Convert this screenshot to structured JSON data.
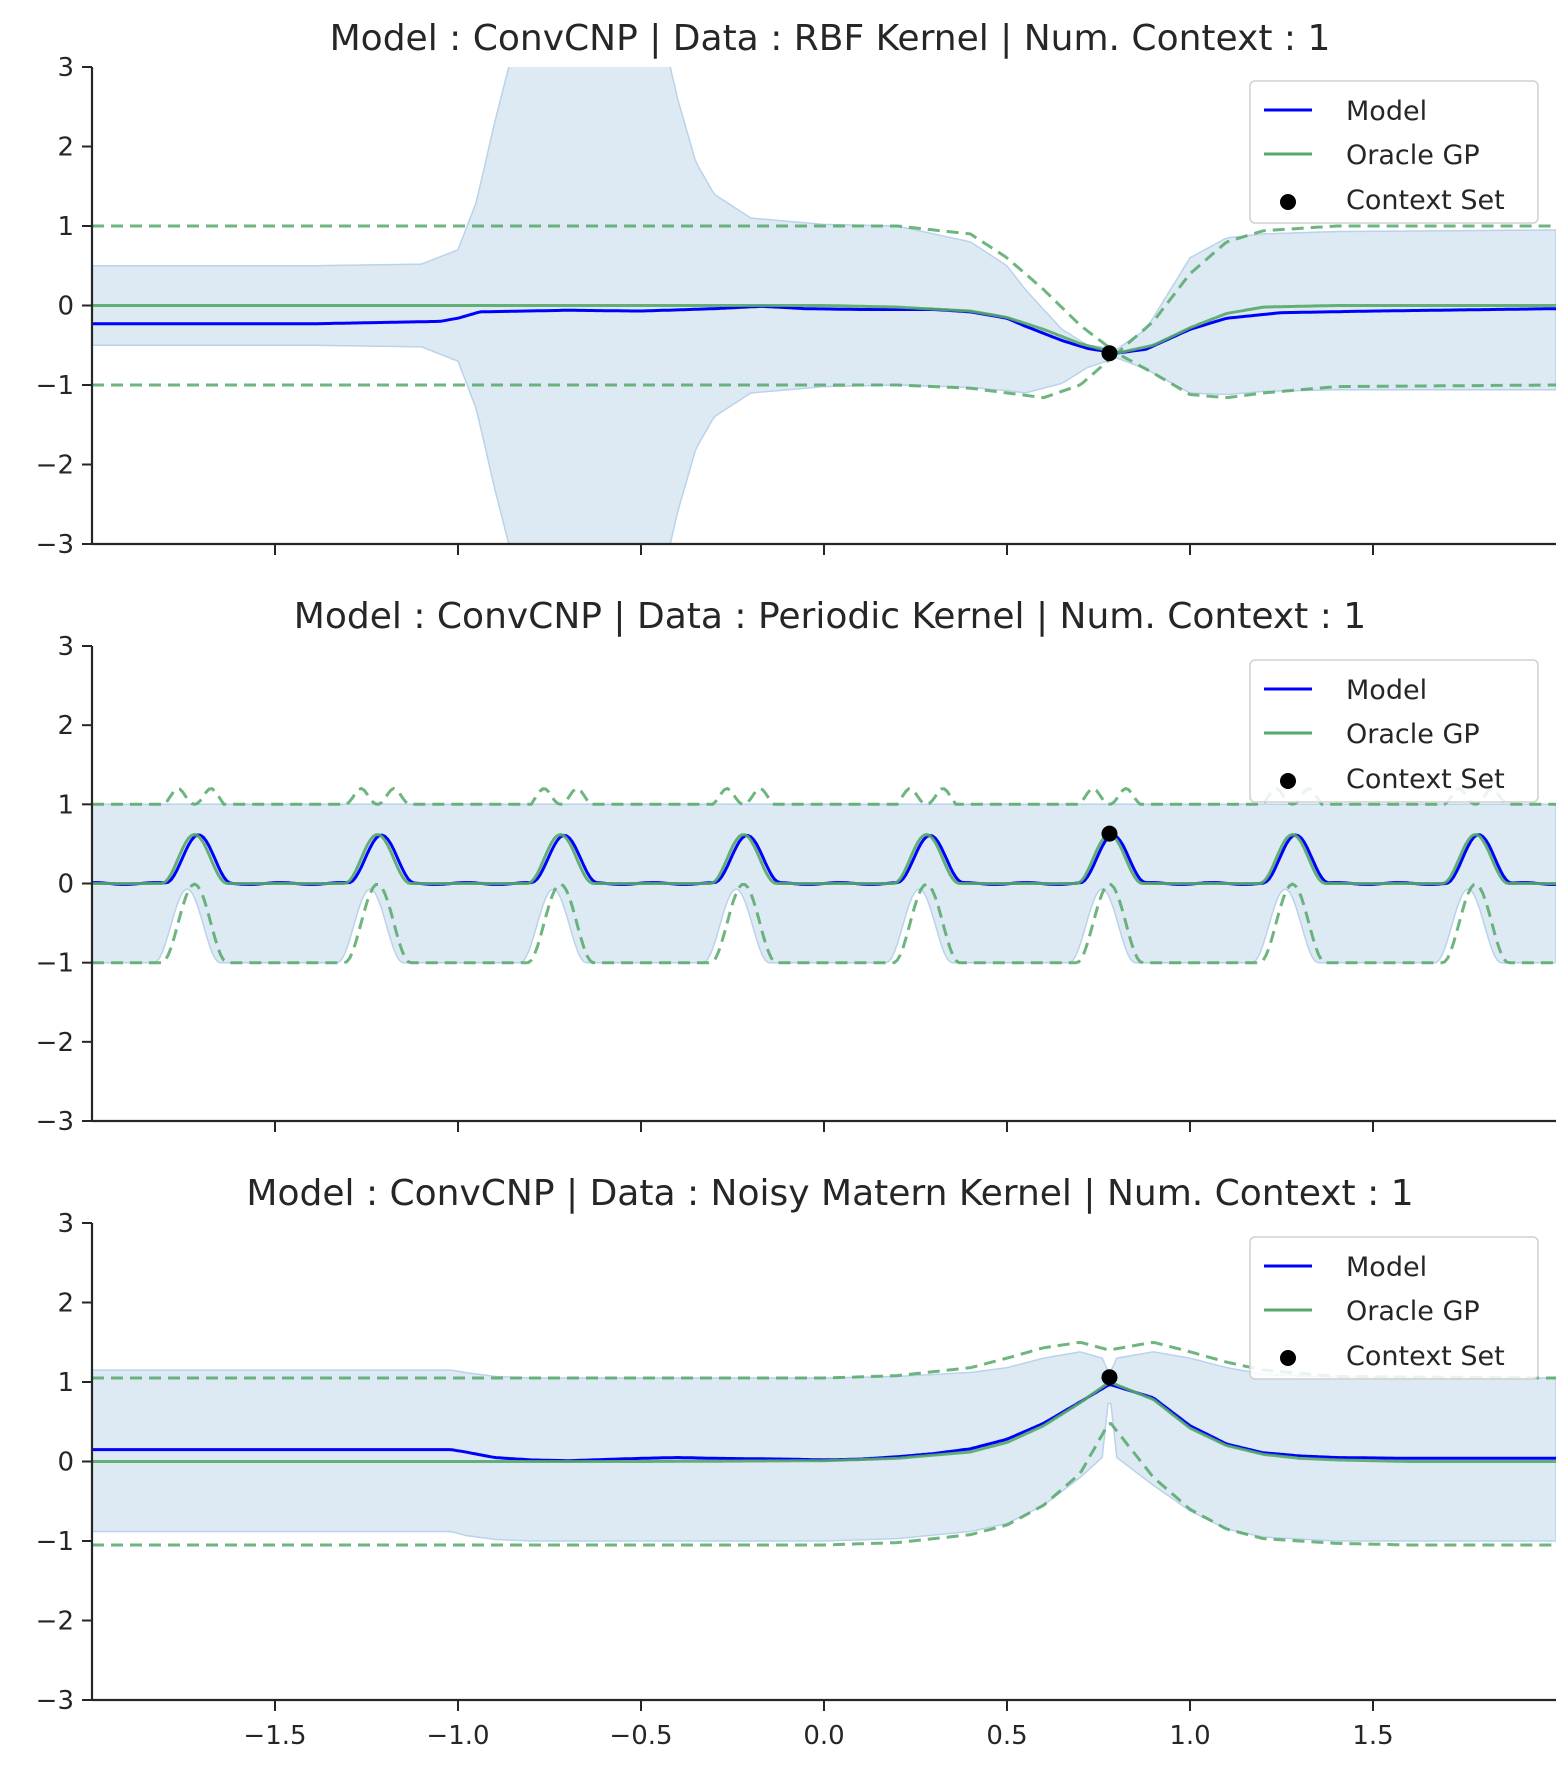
{
  "chart_data": [
    {
      "type": "line",
      "title": "Model : ConvCNP | Data : RBF Kernel | Num. Context : 1",
      "xlabel": "",
      "ylabel": "",
      "xlim": [
        -2.0,
        2.0
      ],
      "ylim": [
        -3,
        3
      ],
      "xticks": [
        -1.5,
        -1.0,
        -0.5,
        0.0,
        0.5,
        1.0,
        1.5
      ],
      "yticks": [
        3,
        2,
        1,
        0,
        -1,
        -2,
        -3
      ],
      "ytick_labels": [
        "3",
        "2",
        "1",
        "0",
        "−1",
        "−2",
        "−3"
      ],
      "show_x_tick_labels": false,
      "grid": false,
      "legend_position": "top-right",
      "legend": [
        "Model",
        "Oracle GP",
        "Context Set"
      ],
      "colors": {
        "model": "#0000ff",
        "oracle": "#55a868",
        "band": "#cfe1f0",
        "context": "#000000"
      },
      "model_mean": {
        "x": [
          -2.0,
          -1.4,
          -1.05,
          -1.0,
          -0.97,
          -0.94,
          -0.7,
          -0.5,
          -0.3,
          -0.17,
          -0.05,
          0.1,
          0.3,
          0.4,
          0.5,
          0.55,
          0.65,
          0.72,
          0.8,
          0.88,
          1.0,
          1.1,
          1.25,
          1.5,
          2.0
        ],
        "y": [
          -0.23,
          -0.23,
          -0.2,
          -0.16,
          -0.12,
          -0.08,
          -0.06,
          -0.07,
          -0.04,
          -0.01,
          -0.04,
          -0.05,
          -0.05,
          -0.08,
          -0.16,
          -0.26,
          -0.44,
          -0.54,
          -0.6,
          -0.55,
          -0.3,
          -0.16,
          -0.09,
          -0.07,
          -0.04
        ]
      },
      "model_band": {
        "x": [
          -2.0,
          -1.4,
          -1.1,
          -1.0,
          -0.95,
          -0.9,
          -0.85,
          -0.8,
          -0.75,
          -0.7,
          -0.65,
          -0.6,
          -0.55,
          -0.5,
          -0.45,
          -0.4,
          -0.35,
          -0.3,
          -0.2,
          0.0,
          0.2,
          0.4,
          0.5,
          0.55,
          0.65,
          0.72,
          0.8,
          0.88,
          1.0,
          1.1,
          1.2,
          1.4,
          2.0
        ],
        "upper": [
          0.5,
          0.5,
          0.52,
          0.7,
          1.3,
          2.3,
          3.2,
          4.2,
          5.0,
          5.5,
          5.6,
          5.4,
          5.0,
          4.5,
          3.6,
          2.6,
          1.8,
          1.4,
          1.1,
          1.02,
          1.0,
          0.8,
          0.5,
          0.2,
          -0.3,
          -0.5,
          -0.55,
          -0.3,
          0.6,
          0.85,
          0.9,
          0.93,
          0.95
        ],
        "lower": [
          -0.5,
          -0.5,
          -0.52,
          -0.7,
          -1.3,
          -2.3,
          -3.2,
          -4.2,
          -5.0,
          -5.5,
          -5.6,
          -5.4,
          -5.0,
          -4.5,
          -3.6,
          -2.6,
          -1.8,
          -1.4,
          -1.1,
          -1.02,
          -1.0,
          -1.03,
          -1.07,
          -1.1,
          -0.98,
          -0.78,
          -0.66,
          -0.8,
          -1.1,
          -1.12,
          -1.08,
          -1.06,
          -1.06
        ]
      },
      "oracle_mean": {
        "x": [
          -2.0,
          -0.2,
          0.0,
          0.2,
          0.4,
          0.5,
          0.6,
          0.7,
          0.8,
          0.9,
          1.0,
          1.1,
          1.2,
          1.4,
          2.0
        ],
        "y": [
          0.0,
          0.0,
          0.0,
          -0.02,
          -0.07,
          -0.15,
          -0.3,
          -0.48,
          -0.6,
          -0.5,
          -0.28,
          -0.1,
          -0.02,
          0.0,
          0.0
        ]
      },
      "oracle_upper": {
        "x": [
          -2.0,
          0.2,
          0.4,
          0.5,
          0.6,
          0.7,
          0.8,
          0.9,
          1.0,
          1.1,
          1.2,
          1.4,
          2.0
        ],
        "y": [
          1.0,
          1.0,
          0.9,
          0.6,
          0.2,
          -0.25,
          -0.6,
          -0.2,
          0.4,
          0.8,
          0.94,
          1.0,
          1.0
        ]
      },
      "oracle_lower": {
        "x": [
          -2.0,
          0.2,
          0.4,
          0.5,
          0.6,
          0.7,
          0.8,
          0.9,
          1.0,
          1.1,
          1.2,
          1.4,
          2.0
        ],
        "y": [
          -1.0,
          -1.0,
          -1.04,
          -1.1,
          -1.16,
          -1.0,
          -0.6,
          -0.85,
          -1.12,
          -1.16,
          -1.1,
          -1.02,
          -1.0
        ]
      },
      "context_points": {
        "x": [
          0.78
        ],
        "y": [
          -0.6
        ]
      }
    },
    {
      "type": "line",
      "title": "Model : ConvCNP | Data : Periodic Kernel | Num. Context : 1",
      "xlabel": "",
      "ylabel": "",
      "xlim": [
        -2.0,
        2.0
      ],
      "ylim": [
        -3,
        3
      ],
      "xticks": [
        -1.5,
        -1.0,
        -0.5,
        0.0,
        0.5,
        1.0,
        1.5
      ],
      "yticks": [
        3,
        2,
        1,
        0,
        -1,
        -2,
        -3
      ],
      "ytick_labels": [
        "3",
        "2",
        "1",
        "0",
        "−1",
        "−2",
        "−3"
      ],
      "show_x_tick_labels": false,
      "grid": false,
      "legend_position": "top-right",
      "legend": [
        "Model",
        "Oracle GP",
        "Context Set"
      ],
      "colors": {
        "model": "#0000ff",
        "oracle": "#55a868",
        "band": "#cfe1f0",
        "context": "#000000"
      },
      "periodic": {
        "period": 0.5,
        "first_peak": -1.72,
        "peak_height": 0.62,
        "peak_halfwidth": 0.09
      },
      "model_band": {
        "upper": 1.0,
        "lower": -1.0
      },
      "context_points": {
        "x": [
          0.78
        ],
        "y": [
          0.63
        ]
      }
    },
    {
      "type": "line",
      "title": "Model : ConvCNP | Data : Noisy Matern Kernel | Num. Context : 1",
      "xlabel": "",
      "ylabel": "",
      "xlim": [
        -2.0,
        2.0
      ],
      "ylim": [
        -3,
        3
      ],
      "xticks": [
        -1.5,
        -1.0,
        -0.5,
        0.0,
        0.5,
        1.0,
        1.5
      ],
      "xtick_labels": [
        "−1.5",
        "−1.0",
        "−0.5",
        "0.0",
        "0.5",
        "1.0",
        "1.5"
      ],
      "yticks": [
        3,
        2,
        1,
        0,
        -1,
        -2,
        -3
      ],
      "ytick_labels": [
        "3",
        "2",
        "1",
        "0",
        "−1",
        "−2",
        "−3"
      ],
      "show_x_tick_labels": true,
      "grid": false,
      "legend_position": "top-right",
      "legend": [
        "Model",
        "Oracle GP",
        "Context Set"
      ],
      "colors": {
        "model": "#0000ff",
        "oracle": "#55a868",
        "band": "#cfe1f0",
        "context": "#000000"
      },
      "model_mean": {
        "x": [
          -2.0,
          -1.02,
          -0.98,
          -0.9,
          -0.8,
          -0.7,
          -0.5,
          -0.4,
          -0.3,
          -0.1,
          0.0,
          0.1,
          0.2,
          0.3,
          0.4,
          0.5,
          0.6,
          0.7,
          0.78,
          0.9,
          1.0,
          1.1,
          1.2,
          1.3,
          1.4,
          1.6,
          2.0
        ],
        "y": [
          0.15,
          0.15,
          0.12,
          0.05,
          0.02,
          0.01,
          0.04,
          0.05,
          0.04,
          0.03,
          0.02,
          0.03,
          0.06,
          0.1,
          0.16,
          0.28,
          0.48,
          0.75,
          0.97,
          0.8,
          0.45,
          0.22,
          0.11,
          0.07,
          0.05,
          0.04,
          0.04
        ]
      },
      "model_band": {
        "x": [
          -2.0,
          -1.02,
          -0.98,
          -0.9,
          -0.8,
          -0.5,
          0.0,
          0.2,
          0.4,
          0.5,
          0.6,
          0.7,
          0.76,
          0.78,
          0.8,
          0.9,
          1.0,
          1.1,
          1.2,
          1.4,
          2.0
        ],
        "upper": [
          1.15,
          1.15,
          1.12,
          1.07,
          1.05,
          1.05,
          1.05,
          1.07,
          1.12,
          1.18,
          1.3,
          1.38,
          1.3,
          1.1,
          1.3,
          1.38,
          1.3,
          1.18,
          1.1,
          1.06,
          1.05
        ],
        "lower": [
          -0.88,
          -0.88,
          -0.93,
          -0.98,
          -1.0,
          -1.0,
          -1.0,
          -0.97,
          -0.88,
          -0.78,
          -0.55,
          -0.2,
          0.05,
          0.9,
          0.05,
          -0.3,
          -0.62,
          -0.85,
          -0.95,
          -1.0,
          -1.0
        ]
      },
      "oracle_mean": {
        "x": [
          -2.0,
          -0.5,
          0.0,
          0.2,
          0.4,
          0.5,
          0.6,
          0.7,
          0.78,
          0.9,
          1.0,
          1.1,
          1.2,
          1.3,
          1.4,
          1.6,
          2.0
        ],
        "y": [
          0.0,
          0.0,
          0.01,
          0.04,
          0.12,
          0.24,
          0.45,
          0.74,
          1.0,
          0.78,
          0.42,
          0.2,
          0.09,
          0.04,
          0.02,
          0.0,
          0.0
        ]
      },
      "oracle_upper": {
        "x": [
          -2.0,
          0.0,
          0.2,
          0.4,
          0.5,
          0.6,
          0.7,
          0.78,
          0.8,
          0.9,
          1.0,
          1.1,
          1.2,
          1.4,
          2.0
        ],
        "y": [
          1.05,
          1.05,
          1.08,
          1.18,
          1.3,
          1.43,
          1.5,
          1.4,
          1.42,
          1.5,
          1.38,
          1.25,
          1.15,
          1.07,
          1.05
        ]
      },
      "oracle_lower": {
        "x": [
          -2.0,
          0.0,
          0.2,
          0.4,
          0.5,
          0.6,
          0.7,
          0.78,
          0.9,
          1.0,
          1.1,
          1.2,
          1.4,
          1.6,
          2.0
        ],
        "y": [
          -1.05,
          -1.05,
          -1.02,
          -0.92,
          -0.8,
          -0.55,
          -0.15,
          0.5,
          -0.2,
          -0.6,
          -0.85,
          -0.97,
          -1.03,
          -1.05,
          -1.05
        ]
      },
      "context_points": {
        "x": [
          0.78
        ],
        "y": [
          1.06
        ]
      }
    }
  ]
}
